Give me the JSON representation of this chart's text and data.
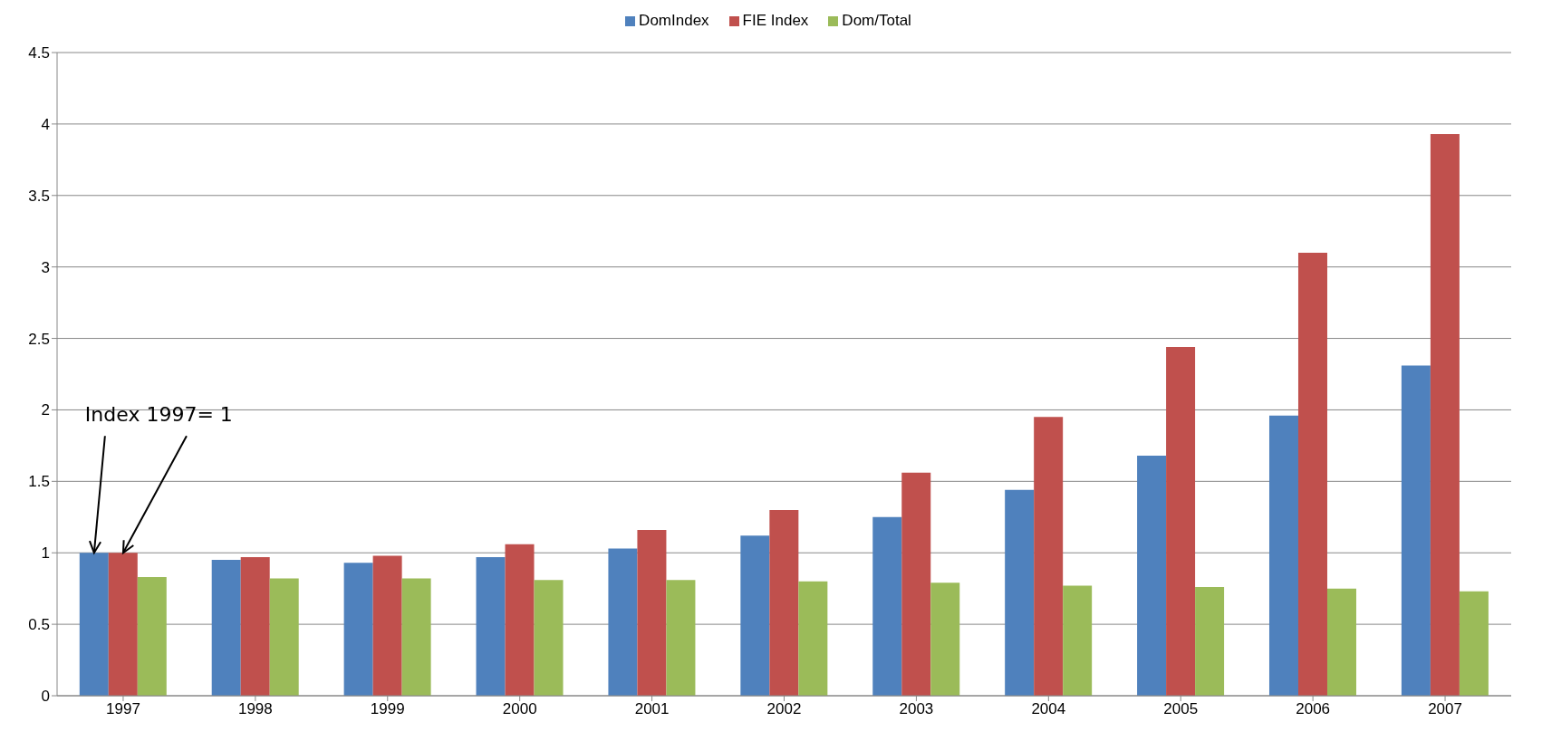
{
  "chart_data": {
    "type": "bar",
    "categories": [
      "1997",
      "1998",
      "1999",
      "2000",
      "2001",
      "2002",
      "2003",
      "2004",
      "2005",
      "2006",
      "2007"
    ],
    "series": [
      {
        "name": "DomIndex",
        "color": "#4f81bd",
        "values": [
          1,
          0.95,
          0.93,
          0.97,
          1.03,
          1.12,
          1.25,
          1.44,
          1.68,
          1.96,
          2.31
        ]
      },
      {
        "name": "FIE Index",
        "color": "#c0504d",
        "values": [
          1,
          0.97,
          0.98,
          1.06,
          1.16,
          1.3,
          1.56,
          1.95,
          2.44,
          3.1,
          3.93
        ]
      },
      {
        "name": "Dom/Total",
        "color": "#9bbb59",
        "values": [
          0.83,
          0.82,
          0.82,
          0.81,
          0.81,
          0.8,
          0.79,
          0.77,
          0.76,
          0.75,
          0.73
        ]
      }
    ],
    "ylim": [
      0,
      4.5
    ],
    "yticks": [
      0,
      0.5,
      1,
      1.5,
      2,
      2.5,
      3,
      3.5,
      4,
      4.5
    ],
    "grid": "y",
    "legend": "top",
    "annotations": [
      {
        "text": "Index 1997= 1",
        "x": "1997",
        "y": 1
      }
    ]
  }
}
